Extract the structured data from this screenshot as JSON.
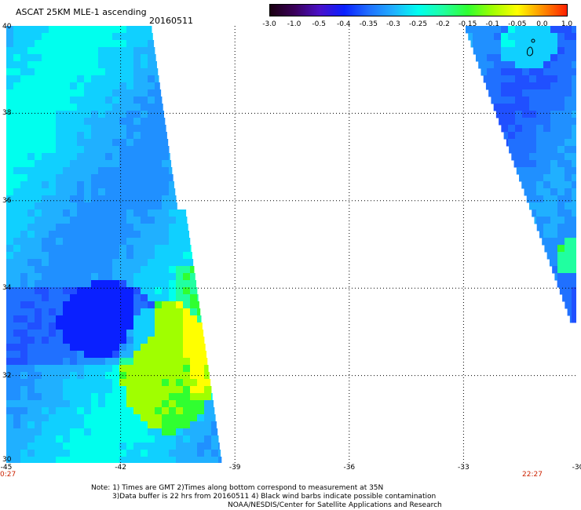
{
  "header": {
    "title": "ASCAT 25KM MLE-1 ascending",
    "date": "20160511"
  },
  "colorbar": {
    "labels": [
      "-3.0",
      "-1.0",
      "-0.5",
      "-0.4",
      "-0.35",
      "-0.3",
      "-0.25",
      "-0.2",
      "-0.15",
      "-0.1",
      "-0.05",
      "0.0",
      "1.0"
    ],
    "colors": [
      "#1a0010",
      "#3a005a",
      "#4a10c8",
      "#0a20ff",
      "#2070ff",
      "#20b0ff",
      "#00ffee",
      "#20ffa0",
      "#30ff30",
      "#a0ff00",
      "#ffff00",
      "#ff9000",
      "#ff2000"
    ]
  },
  "map": {
    "lat_labels": [
      "40",
      "38",
      "36",
      "34",
      "32",
      "30"
    ],
    "lon_labels": [
      "-45",
      "-42",
      "-39",
      "-36",
      "-33",
      "-30"
    ],
    "lat_range": [
      30,
      40
    ],
    "lon_range": [
      -45,
      -30
    ],
    "time_labels": {
      "left": "0:27",
      "right": "22:27"
    }
  },
  "footer": {
    "line1": "Note: 1) Times are GMT 2)Times along bottom correspond to measurement at 35N",
    "line2": "3)Data buffer is 22 hrs from 20160511 4) Black wind barbs indicate possible contamination",
    "line3": "NOAA/NESDIS/Center for Satellite Applications and Research"
  }
}
